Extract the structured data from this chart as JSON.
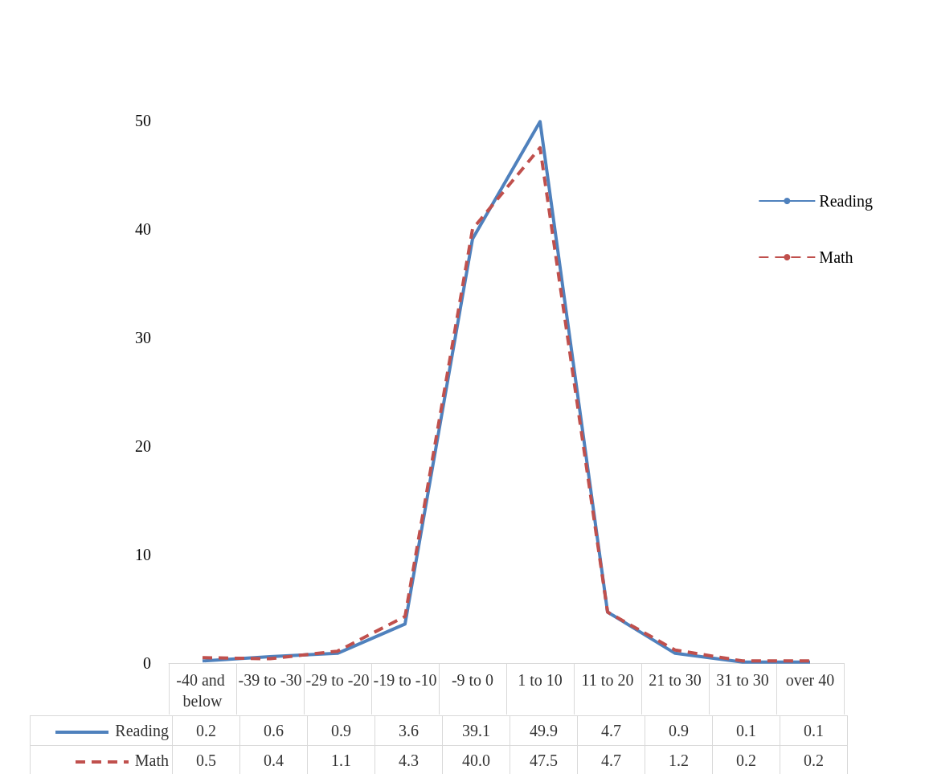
{
  "chart_data": {
    "type": "line",
    "categories": [
      "-40 and below",
      "-39 to -30",
      "-29 to -20",
      "-19 to -10",
      "-9 to 0",
      "1 to 10",
      "11 to 20",
      "21 to 30",
      "31 to 30",
      "over 40"
    ],
    "series": [
      {
        "name": "Reading",
        "color": "#4f81bd",
        "line_style": "solid",
        "values": [
          0.2,
          0.6,
          0.9,
          3.6,
          39.1,
          49.9,
          4.7,
          0.9,
          0.1,
          0.1
        ],
        "value_labels": [
          "0.2",
          "0.6",
          "0.9",
          "3.6",
          "39.1",
          "49.9",
          "4.7",
          "0.9",
          "0.1",
          "0.1"
        ]
      },
      {
        "name": "Math",
        "color": "#c0504d",
        "line_style": "dashed",
        "values": [
          0.5,
          0.4,
          1.1,
          4.3,
          40.0,
          47.5,
          4.7,
          1.2,
          0.2,
          0.2
        ],
        "value_labels": [
          "0.5",
          "0.4",
          "1.1",
          "4.3",
          "40.0",
          "47.5",
          "4.7",
          "1.2",
          "0.2",
          "0.2"
        ]
      }
    ],
    "ylim": [
      0,
      50
    ],
    "yticks": [
      0,
      10,
      20,
      30,
      40,
      50
    ],
    "grid": false,
    "legend": "right",
    "marker": "none"
  }
}
